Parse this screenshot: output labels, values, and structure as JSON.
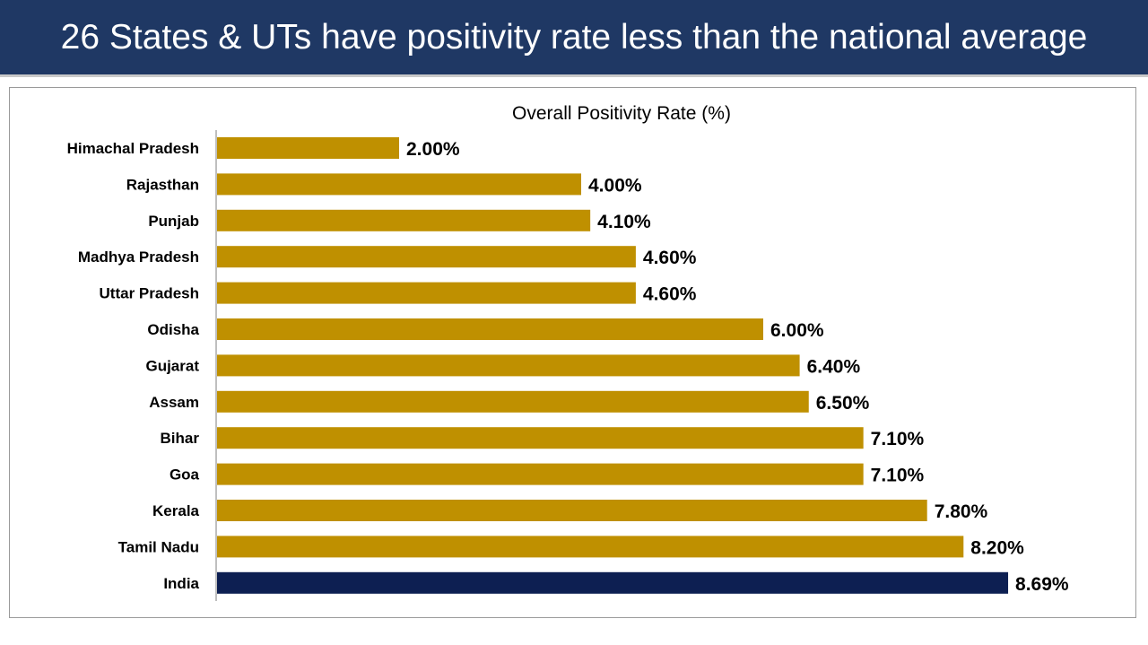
{
  "slide": {
    "title": "26 States & UTs have positivity rate less than the national average"
  },
  "colors": {
    "title_bar": "#1f3864",
    "state_bar": "#bf9000",
    "national_bar": "#0d1f52"
  },
  "chart_data": {
    "type": "bar",
    "orientation": "horizontal",
    "title": "Overall Positivity Rate (%)",
    "xlabel": "",
    "ylabel": "",
    "xlim": [
      0,
      9.6
    ],
    "grid": false,
    "categories": [
      "Himachal Pradesh",
      "Rajasthan",
      "Punjab",
      "Madhya Pradesh",
      "Uttar Pradesh",
      "Odisha",
      "Gujarat",
      "Assam",
      "Bihar",
      "Goa",
      "Kerala",
      "Tamil Nadu",
      "India"
    ],
    "values": [
      2.0,
      4.0,
      4.1,
      4.6,
      4.6,
      6.0,
      6.4,
      6.5,
      7.1,
      7.1,
      7.8,
      8.2,
      8.69
    ],
    "value_labels": [
      "2.00%",
      "4.00%",
      "4.10%",
      "4.60%",
      "4.60%",
      "6.00%",
      "6.40%",
      "6.50%",
      "7.10%",
      "7.10%",
      "7.80%",
      "8.20%",
      "8.69%"
    ],
    "highlight": [
      "state",
      "state",
      "state",
      "state",
      "state",
      "state",
      "state",
      "state",
      "state",
      "state",
      "state",
      "state",
      "national"
    ]
  }
}
